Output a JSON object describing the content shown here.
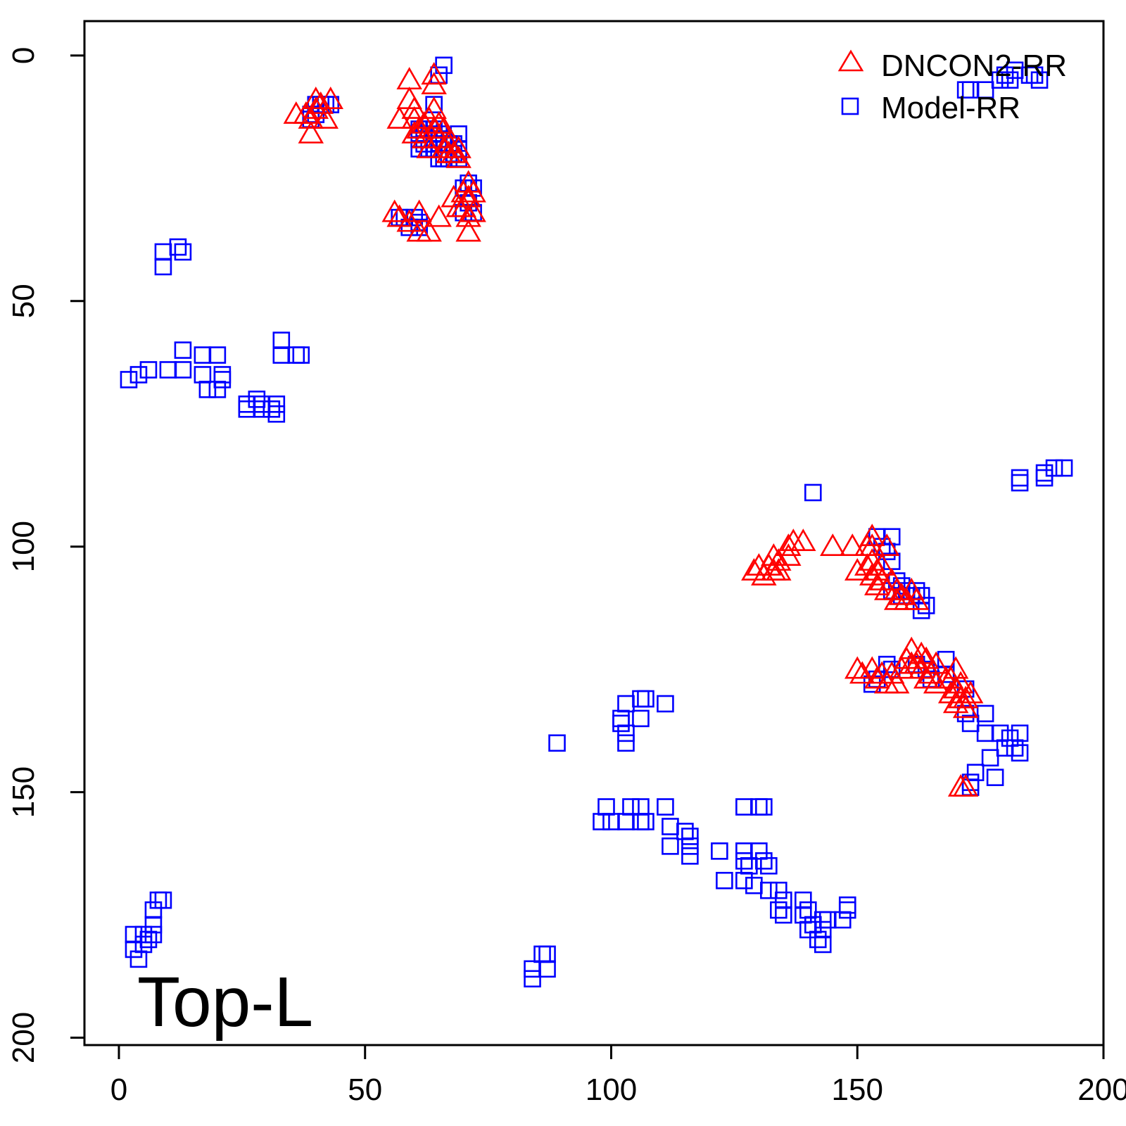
{
  "chart_data": {
    "type": "scatter",
    "title": "",
    "xlabel": "",
    "ylabel": "",
    "xlim": [
      -7,
      200
    ],
    "ylim": [
      201.5,
      -7
    ],
    "x_ticks": [
      0,
      50,
      100,
      150,
      200
    ],
    "y_ticks": [
      0,
      50,
      100,
      150,
      200
    ],
    "y_axis_reversed": true,
    "panel_label": "Top-L",
    "legend": {
      "position": "top-right",
      "entries": [
        {
          "label": "DNCON2-RR",
          "marker": "triangle",
          "color": "#ff0000"
        },
        {
          "label": "Model-RR",
          "marker": "square",
          "color": "#0000ff"
        }
      ]
    },
    "series": [
      {
        "name": "DNCON2-RR",
        "marker": "triangle",
        "color": "#ff0000",
        "points": [
          [
            36,
            12
          ],
          [
            38,
            12
          ],
          [
            39,
            13
          ],
          [
            39,
            16
          ],
          [
            40,
            9
          ],
          [
            40,
            11
          ],
          [
            41,
            10
          ],
          [
            42,
            13
          ],
          [
            43,
            9
          ],
          [
            57,
            13
          ],
          [
            59,
            5
          ],
          [
            59,
            9
          ],
          [
            60,
            11
          ],
          [
            60,
            13
          ],
          [
            60,
            16
          ],
          [
            61,
            15
          ],
          [
            62,
            14
          ],
          [
            62,
            17
          ],
          [
            63,
            13
          ],
          [
            63,
            19
          ],
          [
            64,
            4
          ],
          [
            64,
            6
          ],
          [
            64,
            11
          ],
          [
            64,
            15
          ],
          [
            65,
            14
          ],
          [
            65,
            17
          ],
          [
            66,
            15
          ],
          [
            66,
            19
          ],
          [
            67,
            18
          ],
          [
            67,
            20
          ],
          [
            68,
            20
          ],
          [
            69,
            19
          ],
          [
            69,
            21
          ],
          [
            56,
            32
          ],
          [
            57,
            33
          ],
          [
            59,
            34
          ],
          [
            61,
            32
          ],
          [
            61,
            36
          ],
          [
            63,
            36
          ],
          [
            65,
            33
          ],
          [
            68,
            29
          ],
          [
            69,
            31
          ],
          [
            70,
            28
          ],
          [
            70,
            31
          ],
          [
            71,
            26
          ],
          [
            71,
            29
          ],
          [
            71,
            33
          ],
          [
            72,
            28
          ],
          [
            72,
            32
          ],
          [
            71,
            36
          ],
          [
            129,
            105
          ],
          [
            130,
            104
          ],
          [
            131,
            106
          ],
          [
            132,
            104
          ],
          [
            133,
            102
          ],
          [
            133,
            105
          ],
          [
            134,
            103
          ],
          [
            134,
            105
          ],
          [
            136,
            102
          ],
          [
            136,
            100
          ],
          [
            137,
            99
          ],
          [
            139,
            99
          ],
          [
            145,
            100
          ],
          [
            149,
            100
          ],
          [
            150,
            105
          ],
          [
            152,
            100
          ],
          [
            152,
            104
          ],
          [
            153,
            98
          ],
          [
            153,
            100
          ],
          [
            153,
            103
          ],
          [
            153,
            106
          ],
          [
            154,
            105
          ],
          [
            154,
            108
          ],
          [
            155,
            104
          ],
          [
            155,
            107
          ],
          [
            156,
            100
          ],
          [
            156,
            109
          ],
          [
            157,
            107
          ],
          [
            158,
            109
          ],
          [
            158,
            111
          ],
          [
            159,
            110
          ],
          [
            160,
            111
          ],
          [
            161,
            109
          ],
          [
            162,
            111
          ],
          [
            150,
            125
          ],
          [
            151,
            126
          ],
          [
            153,
            125
          ],
          [
            154,
            127
          ],
          [
            155,
            126
          ],
          [
            156,
            128
          ],
          [
            157,
            126
          ],
          [
            158,
            128
          ],
          [
            159,
            125
          ],
          [
            160,
            123
          ],
          [
            161,
            121
          ],
          [
            161,
            124
          ],
          [
            162,
            124
          ],
          [
            163,
            122
          ],
          [
            163,
            125
          ],
          [
            164,
            123
          ],
          [
            164,
            127
          ],
          [
            165,
            126
          ],
          [
            166,
            124
          ],
          [
            166,
            128
          ],
          [
            168,
            127
          ],
          [
            169,
            127
          ],
          [
            169,
            130
          ],
          [
            170,
            125
          ],
          [
            170,
            129
          ],
          [
            170,
            132
          ],
          [
            171,
            128
          ],
          [
            171,
            131
          ],
          [
            172,
            131
          ],
          [
            172,
            133
          ],
          [
            173,
            130
          ],
          [
            171,
            149
          ],
          [
            172,
            149
          ]
        ]
      },
      {
        "name": "Model-RR",
        "marker": "square",
        "color": "#0000ff",
        "points": [
          [
            39,
            12
          ],
          [
            39,
            13
          ],
          [
            40,
            10
          ],
          [
            40,
            12
          ],
          [
            41,
            10
          ],
          [
            42,
            10
          ],
          [
            43,
            10
          ],
          [
            61,
            15
          ],
          [
            61,
            17
          ],
          [
            61,
            19
          ],
          [
            62,
            16
          ],
          [
            62,
            18
          ],
          [
            63,
            15
          ],
          [
            63,
            19
          ],
          [
            64,
            10
          ],
          [
            64,
            15
          ],
          [
            64,
            17
          ],
          [
            64,
            19
          ],
          [
            65,
            16
          ],
          [
            65,
            18
          ],
          [
            65,
            21
          ],
          [
            66,
            17
          ],
          [
            66,
            21
          ],
          [
            67,
            18
          ],
          [
            67,
            21
          ],
          [
            68,
            18
          ],
          [
            68,
            20
          ],
          [
            69,
            19
          ],
          [
            69,
            21
          ],
          [
            69,
            16
          ],
          [
            65,
            4
          ],
          [
            66,
            2
          ],
          [
            57,
            33
          ],
          [
            58,
            33
          ],
          [
            59,
            35
          ],
          [
            60,
            33
          ],
          [
            61,
            34
          ],
          [
            61,
            35
          ],
          [
            70,
            27
          ],
          [
            70,
            32
          ],
          [
            71,
            26
          ],
          [
            71,
            30
          ],
          [
            72,
            27
          ],
          [
            72,
            32
          ],
          [
            9,
            40
          ],
          [
            9,
            43
          ],
          [
            12,
            39
          ],
          [
            13,
            40
          ],
          [
            2,
            66
          ],
          [
            4,
            65
          ],
          [
            6,
            64
          ],
          [
            10,
            64
          ],
          [
            13,
            60
          ],
          [
            13,
            64
          ],
          [
            17,
            61
          ],
          [
            17,
            65
          ],
          [
            18,
            68
          ],
          [
            20,
            61
          ],
          [
            20,
            68
          ],
          [
            21,
            65
          ],
          [
            21,
            66
          ],
          [
            26,
            71
          ],
          [
            26,
            72
          ],
          [
            28,
            70
          ],
          [
            29,
            71
          ],
          [
            29,
            72
          ],
          [
            31,
            72
          ],
          [
            32,
            71
          ],
          [
            32,
            73
          ],
          [
            33,
            58
          ],
          [
            33,
            61
          ],
          [
            36,
            61
          ],
          [
            37,
            61
          ],
          [
            3,
            179
          ],
          [
            3,
            182
          ],
          [
            4,
            184
          ],
          [
            5,
            179
          ],
          [
            5,
            181
          ],
          [
            6,
            180
          ],
          [
            7,
            174
          ],
          [
            7,
            177
          ],
          [
            7,
            179
          ],
          [
            8,
            172
          ],
          [
            9,
            172
          ],
          [
            84,
            186
          ],
          [
            84,
            188
          ],
          [
            86,
            183
          ],
          [
            87,
            186
          ],
          [
            87,
            183
          ],
          [
            89,
            140
          ],
          [
            102,
            135
          ],
          [
            102,
            136
          ],
          [
            103,
            132
          ],
          [
            103,
            138
          ],
          [
            103,
            140
          ],
          [
            106,
            131
          ],
          [
            106,
            135
          ],
          [
            107,
            131
          ],
          [
            111,
            132
          ],
          [
            98,
            156
          ],
          [
            99,
            153
          ],
          [
            100,
            156
          ],
          [
            103,
            156
          ],
          [
            104,
            153
          ],
          [
            106,
            153
          ],
          [
            106,
            156
          ],
          [
            107,
            156
          ],
          [
            111,
            153
          ],
          [
            112,
            157
          ],
          [
            112,
            161
          ],
          [
            115,
            158
          ],
          [
            116,
            159
          ],
          [
            116,
            161
          ],
          [
            116,
            163
          ],
          [
            122,
            162
          ],
          [
            123,
            168
          ],
          [
            127,
            153
          ],
          [
            127,
            162
          ],
          [
            127,
            164
          ],
          [
            127,
            168
          ],
          [
            128,
            165
          ],
          [
            129,
            169
          ],
          [
            130,
            153
          ],
          [
            130,
            162
          ],
          [
            131,
            153
          ],
          [
            131,
            164
          ],
          [
            132,
            165
          ],
          [
            132,
            170
          ],
          [
            134,
            170
          ],
          [
            134,
            174
          ],
          [
            135,
            172
          ],
          [
            135,
            175
          ],
          [
            139,
            172
          ],
          [
            139,
            175
          ],
          [
            140,
            174
          ],
          [
            140,
            178
          ],
          [
            141,
            177
          ],
          [
            142,
            180
          ],
          [
            143,
            176
          ],
          [
            143,
            178
          ],
          [
            143,
            181
          ],
          [
            144,
            176
          ],
          [
            147,
            176
          ],
          [
            148,
            173
          ],
          [
            148,
            174
          ],
          [
            141,
            89
          ],
          [
            154,
            98
          ],
          [
            155,
            100
          ],
          [
            156,
            101
          ],
          [
            157,
            98
          ],
          [
            157,
            103
          ],
          [
            157,
            109
          ],
          [
            158,
            107
          ],
          [
            159,
            108
          ],
          [
            159,
            110
          ],
          [
            160,
            109
          ],
          [
            161,
            110
          ],
          [
            162,
            109
          ],
          [
            163,
            110
          ],
          [
            163,
            113
          ],
          [
            164,
            112
          ],
          [
            153,
            128
          ],
          [
            154,
            127
          ],
          [
            156,
            124
          ],
          [
            157,
            125
          ],
          [
            162,
            124
          ],
          [
            164,
            125
          ],
          [
            165,
            127
          ],
          [
            168,
            123
          ],
          [
            168,
            126
          ],
          [
            172,
            129
          ],
          [
            172,
            134
          ],
          [
            173,
            136
          ],
          [
            176,
            134
          ],
          [
            176,
            138
          ],
          [
            177,
            143
          ],
          [
            178,
            147
          ],
          [
            179,
            138
          ],
          [
            180,
            141
          ],
          [
            181,
            139
          ],
          [
            182,
            141
          ],
          [
            183,
            142
          ],
          [
            183,
            138
          ],
          [
            173,
            148
          ],
          [
            174,
            146
          ],
          [
            173,
            149
          ],
          [
            172,
            7
          ],
          [
            173,
            7
          ],
          [
            176,
            7
          ],
          [
            179,
            5
          ],
          [
            180,
            4
          ],
          [
            181,
            5
          ],
          [
            182,
            3
          ],
          [
            185,
            4
          ],
          [
            186,
            4
          ],
          [
            187,
            5
          ],
          [
            183,
            86
          ],
          [
            183,
            87
          ],
          [
            188,
            85
          ],
          [
            188,
            86
          ],
          [
            190,
            84
          ],
          [
            192,
            84
          ]
        ]
      }
    ]
  }
}
